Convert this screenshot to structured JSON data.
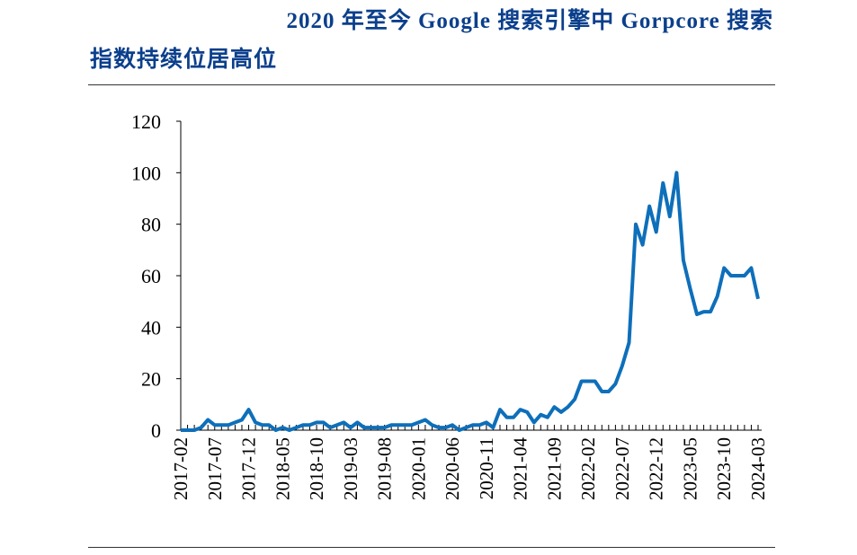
{
  "title_line1": "2020 年至今 Google 搜索引擎中 Gorpcore 搜索",
  "title_line2": "指数持续位居高位",
  "colors": {
    "line": "#0e6fba",
    "title": "#0b3f8c"
  },
  "chart_data": {
    "type": "line",
    "title": "2020 年至今 Google 搜索引擎中 Gorpcore 搜索指数持续位居高位",
    "xlabel": "",
    "ylabel": "",
    "ylim": [
      0,
      120
    ],
    "yticks": [
      0,
      20,
      40,
      60,
      80,
      100,
      120
    ],
    "xtick_labels": [
      "2017-02",
      "2017-07",
      "2017-12",
      "2018-05",
      "2018-10",
      "2019-03",
      "2019-08",
      "2020-01",
      "2020-06",
      "2020-11",
      "2021-04",
      "2021-09",
      "2022-02",
      "2022-07",
      "2022-12",
      "2023-05",
      "2023-10",
      "2024-03"
    ],
    "x_start": "2017-02",
    "x_end": "2024-03",
    "frequency": "monthly",
    "grid": false,
    "values": [
      0,
      0,
      0,
      1,
      4,
      2,
      2,
      2,
      3,
      4,
      8,
      3,
      2,
      2,
      0,
      1,
      0,
      1,
      2,
      2,
      3,
      3,
      1,
      2,
      3,
      1,
      3,
      1,
      1,
      1,
      1,
      2,
      2,
      2,
      2,
      3,
      4,
      2,
      1,
      1,
      2,
      0,
      1,
      2,
      2,
      3,
      1,
      8,
      5,
      5,
      8,
      7,
      3,
      6,
      5,
      9,
      7,
      9,
      12,
      19,
      19,
      19,
      15,
      15,
      18,
      25,
      34,
      80,
      72,
      87,
      77,
      96,
      83,
      100,
      66,
      55,
      45,
      46,
      46,
      52,
      63,
      60,
      60,
      60,
      63,
      51
    ]
  }
}
